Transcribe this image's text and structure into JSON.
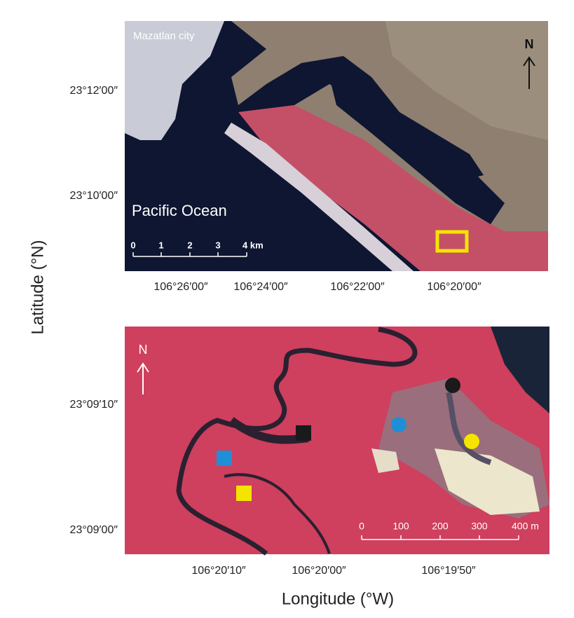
{
  "top_panel": {
    "city_label": "Mazatlan city",
    "ocean_label": "Pacific Ocean",
    "north_label": "N",
    "scale_labels": [
      "0",
      "1",
      "2",
      "3",
      "4 km"
    ],
    "lat_labels": [
      "23°12′00″",
      "23°10′00″"
    ],
    "lon_labels": [
      "106°26′00″",
      "106°24′00″",
      "106°22′00″",
      "106°20′00″"
    ]
  },
  "bottom_panel": {
    "north_label": "N",
    "scale_labels": [
      "0",
      "100",
      "200",
      "300",
      "400 m"
    ],
    "lat_labels": [
      "23°09′10″",
      "23°09′00″"
    ],
    "lon_labels": [
      "106°20′10″",
      "106°20′00″",
      "106°19′50″"
    ]
  },
  "axes": {
    "y_label": "Latitude (°N)",
    "x_label": "Longitude (°W)"
  }
}
